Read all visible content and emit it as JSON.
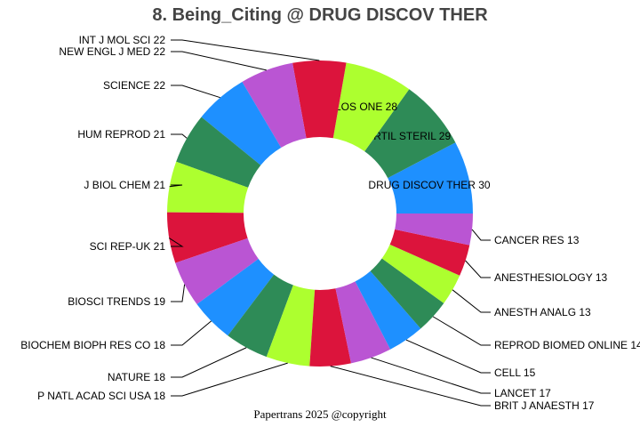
{
  "chart_data": {
    "type": "pie",
    "donut": true,
    "title": "8. Being_Citing @ DRUG DISCOV THER",
    "footer": "Papertrans 2025 @copyright",
    "start_angle": "3 o'clock, counterclockwise",
    "colors": [
      "#1E90FF",
      "#2E8B57",
      "#ADFF2F",
      "#DC143C",
      "#BA55D3"
    ],
    "slices": [
      {
        "label": "DRUG DISCOV THER",
        "value": 30
      },
      {
        "label": "FERTIL STERIL",
        "value": 29
      },
      {
        "label": "PLOS ONE",
        "value": 28
      },
      {
        "label": "INT J MOL SCI",
        "value": 22
      },
      {
        "label": "NEW ENGL J MED",
        "value": 22
      },
      {
        "label": "SCIENCE",
        "value": 22
      },
      {
        "label": "HUM REPROD",
        "value": 21
      },
      {
        "label": "J BIOL CHEM",
        "value": 21
      },
      {
        "label": "SCI REP-UK",
        "value": 21
      },
      {
        "label": "BIOSCI TRENDS",
        "value": 19
      },
      {
        "label": "BIOCHEM BIOPH RES CO",
        "value": 18
      },
      {
        "label": "NATURE",
        "value": 18
      },
      {
        "label": "P NATL ACAD SCI USA",
        "value": 18
      },
      {
        "label": "BRIT J ANAESTH",
        "value": 17
      },
      {
        "label": "LANCET",
        "value": 17
      },
      {
        "label": "CELL",
        "value": 15
      },
      {
        "label": "REPROD BIOMED ONLINE",
        "value": 14
      },
      {
        "label": "ANESTH ANALG",
        "value": 13
      },
      {
        "label": "ANESTHESIOLOGY",
        "value": 13
      },
      {
        "label": "CANCER RES",
        "value": 13
      }
    ]
  }
}
